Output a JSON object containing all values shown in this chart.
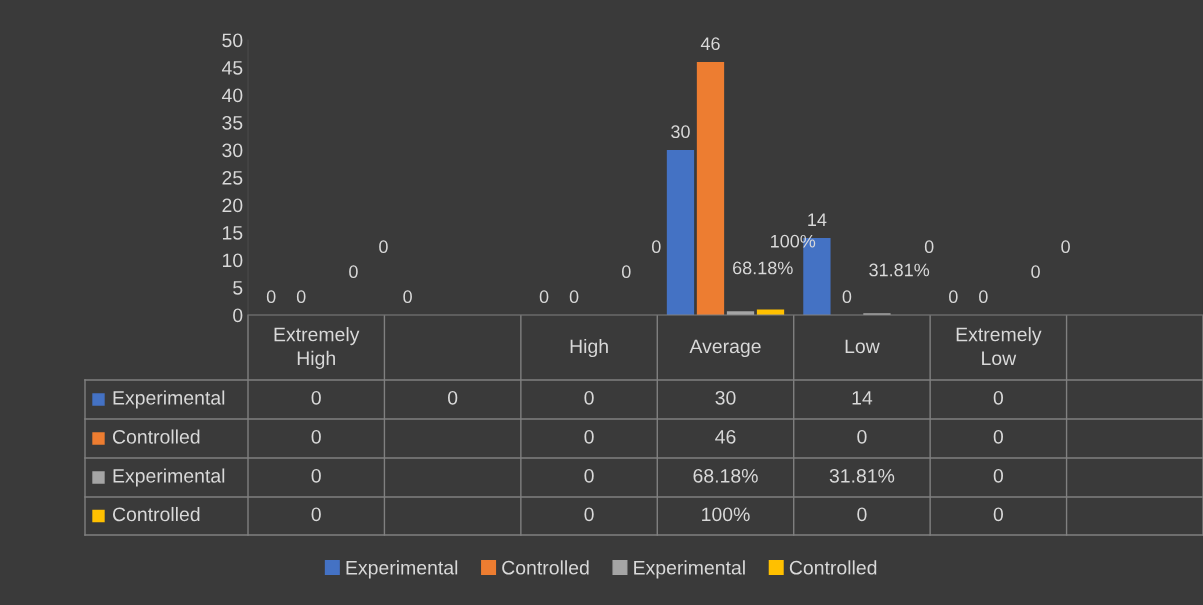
{
  "chart_data": {
    "type": "bar",
    "categories": [
      "Extremely High",
      null,
      "High",
      "Average",
      "Low",
      "Extremely Low",
      null
    ],
    "series": [
      {
        "name": "Experimental",
        "color": "#4472c4",
        "values": [
          0,
          0,
          0,
          30,
          14,
          0,
          null
        ],
        "value_labels": [
          "0",
          "0",
          "0",
          "30",
          "14",
          "0",
          null
        ]
      },
      {
        "name": "Controlled",
        "color": "#ed7d31",
        "values": [
          0,
          null,
          0,
          46,
          0,
          0,
          null
        ],
        "value_labels": [
          "0",
          null,
          "0",
          "46",
          "0",
          "0",
          null
        ]
      },
      {
        "name": "Experimental",
        "color": "#a5a5a5",
        "values": [
          0,
          null,
          0,
          0.6818,
          0.3181,
          0,
          null
        ],
        "value_labels": [
          "0",
          null,
          "0",
          "68.18%",
          "31.81%",
          "0",
          null
        ]
      },
      {
        "name": "Controlled",
        "color": "#ffc000",
        "values": [
          0,
          null,
          0,
          1,
          0,
          0,
          null
        ],
        "value_labels": [
          "0",
          null,
          "0",
          "100%",
          "0",
          "0",
          null
        ]
      }
    ],
    "ylim": [
      0,
      50
    ],
    "yticks": [
      0,
      5,
      10,
      15,
      20,
      25,
      30,
      35,
      40,
      45,
      50
    ],
    "grid": false,
    "legend": "bottom"
  }
}
